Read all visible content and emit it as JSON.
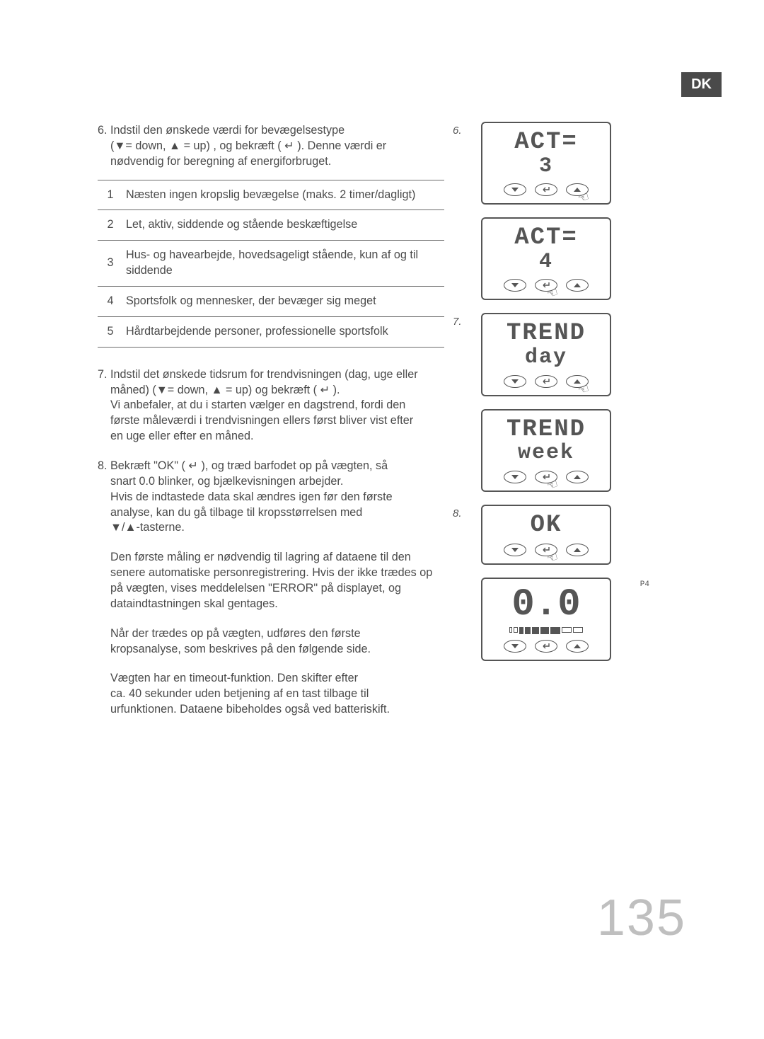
{
  "badge": "DK",
  "page_number": "135",
  "section6": {
    "intro_a": "6. Indstil den ønskede værdi for bevægelsestype",
    "intro_b": "(▼= down, ▲ = up) , og bekræft ( ↵ ). Denne værdi er",
    "intro_c": "nødvendig for beregning af energiforbruget.",
    "rows": [
      {
        "n": "1",
        "t": "Næsten ingen kropslig bevægelse (maks. 2 timer/dagligt)"
      },
      {
        "n": "2",
        "t": "Let, aktiv, siddende og stående beskæftigelse"
      },
      {
        "n": "3",
        "t": "Hus- og havearbejde, hovedsageligt stående, kun af og til siddende"
      },
      {
        "n": "4",
        "t": "Sportsfolk og mennesker, der bevæger sig meget"
      },
      {
        "n": "5",
        "t": "Hårdtarbejdende personer, professionelle sportsfolk"
      }
    ]
  },
  "section7": {
    "l1": "7. Indstil det ønskede tidsrum for trendvisningen (dag, uge eller",
    "l2": "måned) (▼= down, ▲ = up) og bekræft ( ↵ ).",
    "l3": "Vi anbefaler, at du i starten vælger en dagstrend, fordi den",
    "l4": "første måleværdi i trendvisningen ellers først bliver vist efter",
    "l5": "en uge eller efter en måned."
  },
  "section8": {
    "p1a": "8. Bekræft \"OK\" ( ↵ ), og træd barfodet op på vægten, så",
    "p1b": "snart 0.0 blinker, og bjælkevisningen arbejder.",
    "p1c": "Hvis de indtastede data skal ændres igen før den første",
    "p1d": "analyse, kan du gå tilbage til kropsstørrelsen med",
    "p1e": "▼/▲-tasterne.",
    "p2a": "Den første måling er nødvendig til lagring af dataene til den",
    "p2b": "senere automatiske personregistrering. Hvis der ikke trædes op",
    "p2c": "på vægten, vises meddelelsen \"ERROR\" på  displayet, og",
    "p2d": "dataindtastningen skal gentages.",
    "p3a": "Når der trædes op på vægten, udføres den første",
    "p3b": "kropsanalyse, som beskrives på den følgende side.",
    "p4a": "Vægten har en timeout-funktion. Den skifter efter",
    "p4b": "ca. 40 sekunder uden betjening af en tast tilbage til",
    "p4c": "urfunktionen. Dataene bibeholdes også ved batteriskift."
  },
  "figures": [
    {
      "label": "6.",
      "line1": "ACT=",
      "line2": "3",
      "press": "up",
      "hand": true
    },
    {
      "label": "",
      "line1": "ACT=",
      "line2": "4",
      "press": "enter",
      "hand": true
    },
    {
      "label": "7.",
      "line1": "TREND",
      "line2": "day",
      "press": "up",
      "hand": true
    },
    {
      "label": "",
      "line1": "TREND",
      "line2": "week",
      "press": "enter",
      "hand": true
    },
    {
      "label": "8.",
      "line1": "OK",
      "line2": "",
      "press": "enter",
      "hand": true
    },
    {
      "label": "",
      "type": "zero",
      "mini": "P4",
      "value": "0.0",
      "press": "",
      "hand": false
    }
  ],
  "colors": {
    "text": "#4a4a4a",
    "line": "#6a6a6a",
    "page_num": "#bfbfbf",
    "badge_bg": "#4a4a4a"
  }
}
